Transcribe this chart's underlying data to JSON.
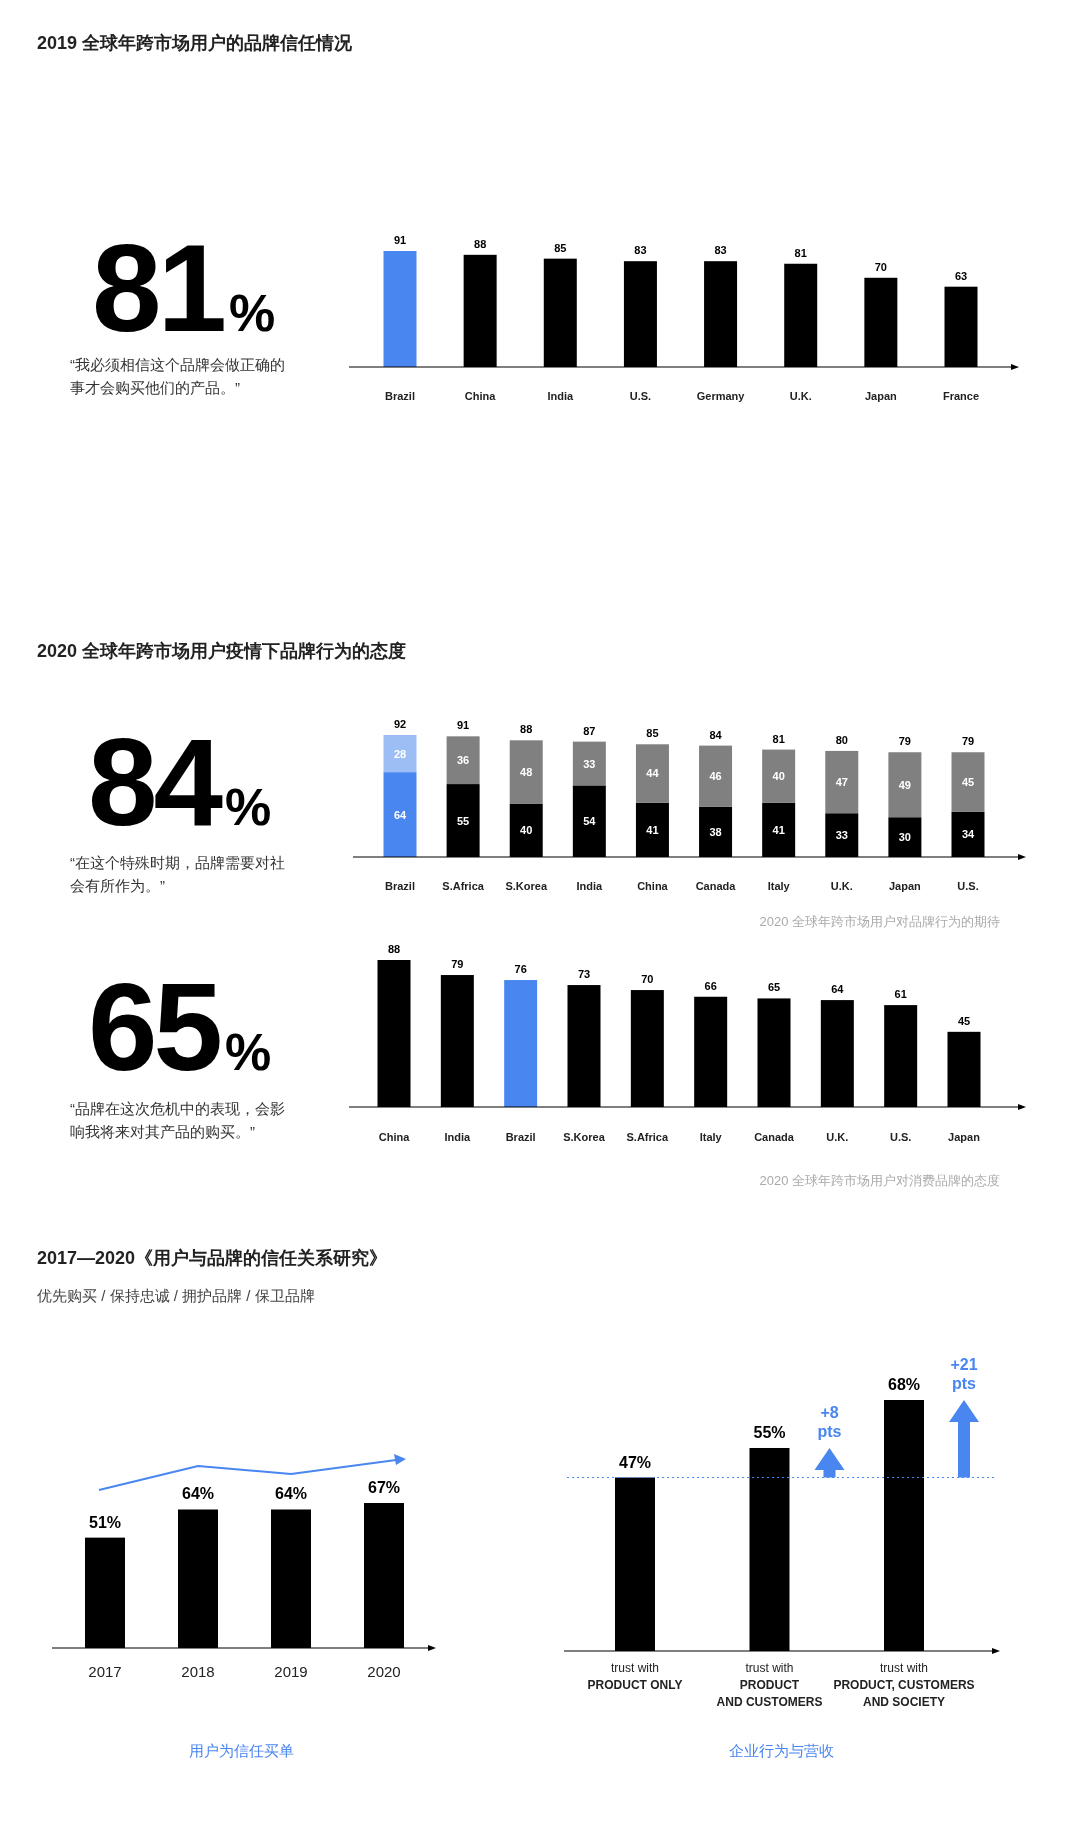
{
  "chart_data": [
    {
      "type": "bar",
      "title": "2019 全球年跨市场用户的品牌信任情况",
      "categories": [
        "Brazil",
        "China",
        "India",
        "U.S.",
        "Germany",
        "U.K.",
        "Japan",
        "France"
      ],
      "values": [
        91,
        88,
        85,
        83,
        83,
        81,
        70,
        63
      ],
      "colors": [
        "#4a86f0",
        "#000000",
        "#000000",
        "#000000",
        "#000000",
        "#000000",
        "#000000",
        "#000000"
      ],
      "data_labels": true,
      "annotations": [
        "81%",
        "“我必须相信这个品牌会做正确的事才会购买他们的产品。”"
      ]
    },
    {
      "type": "bar",
      "title": "2020 全球年跨市场用户疫情下品牌行为的态度",
      "stacked": true,
      "categories": [
        "Brazil",
        "S.Africa",
        "S.Korea",
        "India",
        "China",
        "Canada",
        "Italy",
        "U.K.",
        "Japan",
        "U.S."
      ],
      "series": [
        {
          "colors": [
            "#4a86f0",
            "#000000",
            "#000000",
            "#000000",
            "#000000",
            "#000000",
            "#000000",
            "#000000",
            "#000000",
            "#000000"
          ],
          "values": [
            64,
            55,
            40,
            54,
            41,
            38,
            41,
            33,
            30,
            34
          ]
        },
        {
          "colors": [
            "#9dbdf5",
            "#808080",
            "#808080",
            "#808080",
            "#808080",
            "#808080",
            "#808080",
            "#808080",
            "#808080",
            "#808080"
          ],
          "values": [
            28,
            36,
            48,
            33,
            44,
            46,
            40,
            47,
            49,
            45
          ]
        }
      ],
      "data_labels": true,
      "totals": [
        "92",
        "91",
        "88",
        "87",
        "85",
        "84",
        "81",
        "80",
        "79",
        "79"
      ],
      "annotations": [
        "84%",
        "“在这个特殊时期，品牌需要对社会有所作为。”",
        "2020 全球年跨市场用户对品牌行为的期待"
      ]
    },
    {
      "type": "bar",
      "categories": [
        "China",
        "India",
        "Brazil",
        "S.Korea",
        "S.Africa",
        "Italy",
        "Canada",
        "U.K.",
        "U.S.",
        "Japan"
      ],
      "values": [
        88,
        79,
        76,
        73,
        70,
        66,
        65,
        64,
        61,
        45
      ],
      "colors": [
        "#000000",
        "#000000",
        "#4a86f0",
        "#000000",
        "#000000",
        "#000000",
        "#000000",
        "#000000",
        "#000000",
        "#000000"
      ],
      "data_labels": true,
      "annotations": [
        "65%",
        "“品牌在这次危机中的表现，会影响我将来对其产品的购买。”",
        "2020 全球年跨市场用户对消费品牌的态度"
      ]
    },
    {
      "type": "bar",
      "title": "2017—2020《用户与品牌的信任关系研究》",
      "subtitle": "优先购买 / 保持忠诚 / 拥护品牌 / 保卫品牌",
      "categories": [
        "2017",
        "2018",
        "2019",
        "2020"
      ],
      "values": [
        51,
        64,
        64,
        67
      ],
      "colors": [
        "#000000",
        "#000000",
        "#000000",
        "#000000"
      ],
      "value_labels": [
        "51%",
        "64%",
        "64%",
        "67%"
      ],
      "annotations": [
        "用户为信任买单"
      ]
    },
    {
      "type": "bar",
      "categories": [
        "trust with\nPRODUCT ONLY",
        "trust with\nPRODUCT\nAND CUSTOMERS",
        "trust with\nPRODUCT, CUSTOMERS\nAND SOCIETY"
      ],
      "values": [
        47,
        55,
        68
      ],
      "colors": [
        "#000000",
        "#000000",
        "#000000"
      ],
      "value_labels": [
        "47%",
        "55%",
        "68%"
      ],
      "ref_lines": [
        {
          "axis": "y",
          "value": 47,
          "color": "#4a86f0",
          "line_style": "dotted"
        }
      ],
      "annotations": [
        "+8 pts",
        "+21 pts",
        "企业行为与营收"
      ]
    }
  ]
}
